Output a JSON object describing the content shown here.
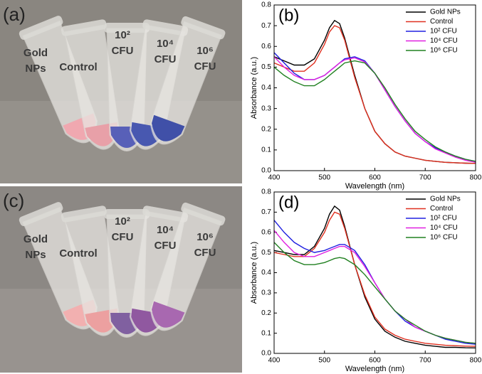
{
  "photos": [
    {
      "label": "(a)",
      "tubes": [
        [
          "Gold",
          "NPs"
        ],
        [
          "Control"
        ],
        [
          "10²",
          "CFU"
        ],
        [
          "10⁴",
          "CFU"
        ],
        [
          "10⁶",
          "CFU"
        ]
      ]
    },
    {
      "label": "(c)",
      "tubes": [
        [
          "Gold",
          "NPs"
        ],
        [
          "Control"
        ],
        [
          "10²",
          "CFU"
        ],
        [
          "10⁴",
          "CFU"
        ],
        [
          "10⁶",
          "CFU"
        ]
      ]
    }
  ],
  "chart_data": [
    {
      "type": "line",
      "label": "(b)",
      "x_label": "Wavelength (nm)",
      "y_label": "Absorbance (a.u.)",
      "x": [
        400,
        420,
        440,
        460,
        480,
        500,
        510,
        520,
        530,
        540,
        560,
        580,
        600,
        620,
        640,
        660,
        680,
        700,
        720,
        740,
        760,
        780,
        800
      ],
      "xlim": [
        400,
        800
      ],
      "xticks": [
        400,
        500,
        600,
        700,
        800
      ],
      "ylim": [
        0,
        0.8
      ],
      "yticks": [
        {
          "value": 0,
          "label": "0.0"
        },
        0.1,
        0.2,
        0.3,
        0.4,
        0.5,
        0.6,
        0.7,
        0.8
      ],
      "legend": "upper right",
      "series": [
        {
          "name": "Gold NPs",
          "color": "#000000",
          "values": [
            0.55,
            0.53,
            0.51,
            0.51,
            0.54,
            0.63,
            0.69,
            0.725,
            0.71,
            0.64,
            0.46,
            0.3,
            0.19,
            0.13,
            0.09,
            0.07,
            0.06,
            0.05,
            0.045,
            0.04,
            0.038,
            0.036,
            0.035
          ]
        },
        {
          "name": "Control",
          "color": "#e03020",
          "values": [
            0.52,
            0.5,
            0.48,
            0.48,
            0.52,
            0.61,
            0.67,
            0.7,
            0.69,
            0.63,
            0.45,
            0.3,
            0.19,
            0.13,
            0.09,
            0.07,
            0.06,
            0.05,
            0.045,
            0.04,
            0.038,
            0.036,
            0.035
          ]
        },
        {
          "name": "10² CFU",
          "color": "#2020e0",
          "values": [
            0.57,
            0.52,
            0.47,
            0.44,
            0.44,
            0.46,
            0.48,
            0.5,
            0.52,
            0.54,
            0.55,
            0.53,
            0.47,
            0.39,
            0.31,
            0.24,
            0.18,
            0.14,
            0.11,
            0.09,
            0.07,
            0.055,
            0.045
          ]
        },
        {
          "name": "10⁴ CFU",
          "color": "#e020e0",
          "values": [
            0.55,
            0.5,
            0.46,
            0.44,
            0.44,
            0.46,
            0.48,
            0.5,
            0.52,
            0.535,
            0.545,
            0.525,
            0.47,
            0.39,
            0.31,
            0.24,
            0.18,
            0.14,
            0.105,
            0.085,
            0.065,
            0.05,
            0.04
          ]
        },
        {
          "name": "10⁶ CFU",
          "color": "#208020",
          "values": [
            0.5,
            0.46,
            0.43,
            0.41,
            0.41,
            0.44,
            0.46,
            0.48,
            0.5,
            0.52,
            0.53,
            0.52,
            0.47,
            0.4,
            0.32,
            0.25,
            0.19,
            0.15,
            0.115,
            0.09,
            0.07,
            0.055,
            0.045
          ]
        }
      ]
    },
    {
      "type": "line",
      "label": "(d)",
      "x_label": "Wavelength (nm)",
      "y_label": "Absorbance (a.u.)",
      "x": [
        400,
        420,
        440,
        460,
        480,
        500,
        510,
        520,
        530,
        540,
        560,
        580,
        600,
        620,
        640,
        660,
        680,
        700,
        720,
        740,
        760,
        780,
        800
      ],
      "xlim": [
        400,
        800
      ],
      "xticks": [
        400,
        500,
        600,
        700,
        800
      ],
      "ylim": [
        0,
        0.8
      ],
      "yticks": [
        {
          "value": 0,
          "label": "0.0"
        },
        0.1,
        0.2,
        0.3,
        0.4,
        0.5,
        0.6,
        0.7,
        0.8
      ],
      "legend": "upper right",
      "series": [
        {
          "name": "Gold NPs",
          "color": "#000000",
          "values": [
            0.51,
            0.5,
            0.49,
            0.49,
            0.53,
            0.62,
            0.69,
            0.73,
            0.71,
            0.63,
            0.44,
            0.28,
            0.17,
            0.11,
            0.08,
            0.06,
            0.05,
            0.04,
            0.035,
            0.03,
            0.03,
            0.028,
            0.027
          ]
        },
        {
          "name": "Control",
          "color": "#e03020",
          "values": [
            0.5,
            0.49,
            0.48,
            0.48,
            0.52,
            0.6,
            0.66,
            0.7,
            0.69,
            0.62,
            0.44,
            0.29,
            0.18,
            0.12,
            0.09,
            0.07,
            0.06,
            0.05,
            0.045,
            0.04,
            0.038,
            0.036,
            0.035
          ]
        },
        {
          "name": "10² CFU",
          "color": "#2020e0",
          "values": [
            0.66,
            0.6,
            0.55,
            0.52,
            0.5,
            0.51,
            0.52,
            0.53,
            0.54,
            0.54,
            0.51,
            0.44,
            0.35,
            0.27,
            0.21,
            0.16,
            0.13,
            0.11,
            0.09,
            0.07,
            0.06,
            0.05,
            0.045
          ]
        },
        {
          "name": "10⁴ CFU",
          "color": "#e020e0",
          "values": [
            0.61,
            0.55,
            0.5,
            0.48,
            0.48,
            0.5,
            0.51,
            0.52,
            0.53,
            0.53,
            0.5,
            0.43,
            0.35,
            0.27,
            0.21,
            0.17,
            0.13,
            0.11,
            0.09,
            0.075,
            0.065,
            0.055,
            0.05
          ]
        },
        {
          "name": "10⁶ CFU",
          "color": "#208020",
          "values": [
            0.55,
            0.5,
            0.46,
            0.44,
            0.44,
            0.45,
            0.46,
            0.47,
            0.475,
            0.47,
            0.44,
            0.39,
            0.33,
            0.27,
            0.21,
            0.17,
            0.14,
            0.11,
            0.09,
            0.075,
            0.065,
            0.055,
            0.05
          ]
        }
      ]
    }
  ]
}
